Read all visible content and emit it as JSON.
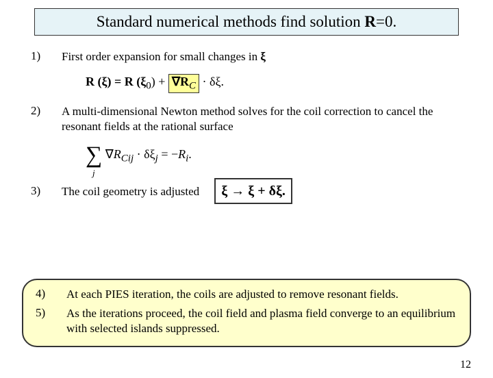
{
  "title_pre": "Standard numerical methods find solution ",
  "title_R": "R",
  "title_post": "=0.",
  "items": {
    "n1": "1)",
    "n2": "2)",
    "n3": "3)",
    "n4": "4)",
    "n5": "5)",
    "t1_pre": "First order expansion for small changes in ",
    "t1_xi": "ξ",
    "t2": "A multi-dimensional Newton method solves for the coil correction to cancel the resonant fields at the rational surface",
    "t3": "The coil geometry is adjusted",
    "t4": "At each PIES iteration, the coils are adjusted to remove resonant fields.",
    "t5": "As the iterations proceed, the coil field and plasma field converge to an equilibrium with selected islands suppressed."
  },
  "eq1": {
    "lhs": "R (ξ) = R (ξ",
    "sub0": "0",
    "mid": ") + ",
    "box": "∇R",
    "boxsub": "C",
    "tail": " · δξ."
  },
  "eq2": {
    "grad": "∇",
    "R": "R",
    "sub": "Cij",
    "mid": " · δξ",
    "subj": "j",
    "rhs": " = −",
    "Ri": "R",
    "subi": "i",
    "dot": "."
  },
  "eq3": {
    "a": "ξ → ξ + δξ."
  },
  "pagenum": "12",
  "colors": {
    "title_bg": "#e6f3f7",
    "highlight_bg": "#ffff99",
    "callout_bg": "#ffffcc"
  }
}
